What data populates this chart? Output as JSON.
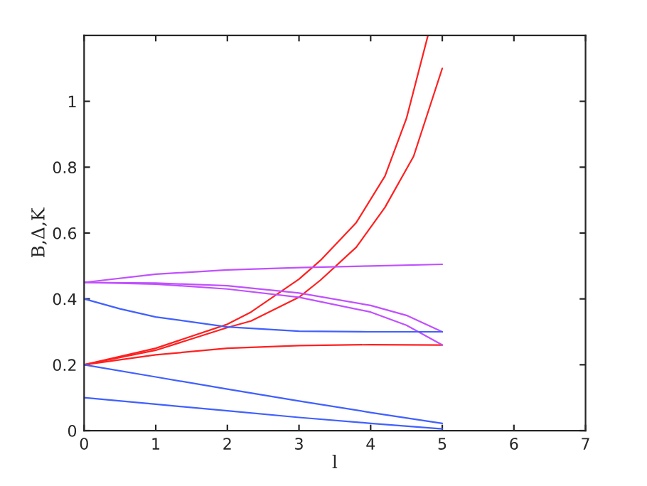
{
  "chart_data": {
    "type": "line",
    "xlabel": "l",
    "ylabel": "B,Δ,K",
    "xlim": [
      0,
      7
    ],
    "xticks": [
      0,
      1,
      2,
      3,
      4,
      5,
      6,
      7
    ],
    "ylim": [
      0,
      1.2
    ],
    "yticks": [
      0,
      0.2,
      0.4,
      0.6,
      0.8,
      1
    ],
    "grid": false,
    "legend": false,
    "series": [
      {
        "color": "#ff2020",
        "x": [
          0,
          1,
          2,
          2.33,
          3,
          3.3,
          3.8,
          4.2,
          4.5,
          4.8
        ],
        "values": [
          0.2,
          0.25,
          0.323,
          0.36,
          0.46,
          0.517,
          0.632,
          0.773,
          0.948,
          1.2
        ]
      },
      {
        "color": "#ff2020",
        "x": [
          0,
          1,
          2,
          2.33,
          3,
          3.3,
          3.8,
          4.2,
          4.6,
          5
        ],
        "values": [
          0.2,
          0.244,
          0.313,
          0.333,
          0.405,
          0.457,
          0.557,
          0.678,
          0.833,
          1.1
        ]
      },
      {
        "color": "#ff2020",
        "x": [
          0,
          1,
          2,
          3,
          4,
          5
        ],
        "values": [
          0.2,
          0.23,
          0.25,
          0.258,
          0.261,
          0.26
        ]
      },
      {
        "color": "#c050ff",
        "x": [
          0,
          1,
          2,
          3,
          4,
          5
        ],
        "values": [
          0.45,
          0.475,
          0.488,
          0.495,
          0.5,
          0.505
        ]
      },
      {
        "color": "#c050ff",
        "x": [
          0,
          1,
          2,
          3,
          4,
          4.5,
          5
        ],
        "values": [
          0.45,
          0.448,
          0.44,
          0.418,
          0.38,
          0.35,
          0.3
        ]
      },
      {
        "color": "#c050ff",
        "x": [
          0,
          1,
          2,
          3,
          4,
          4.5,
          5
        ],
        "values": [
          0.45,
          0.445,
          0.43,
          0.405,
          0.36,
          0.32,
          0.26
        ]
      },
      {
        "color": "#4060ff",
        "x": [
          0,
          0.5,
          1,
          2,
          3,
          4,
          5
        ],
        "values": [
          0.4,
          0.37,
          0.345,
          0.315,
          0.302,
          0.3,
          0.3
        ]
      },
      {
        "color": "#4060ff",
        "x": [
          0,
          1,
          2,
          3,
          4,
          5
        ],
        "values": [
          0.2,
          0.163,
          0.126,
          0.09,
          0.055,
          0.022
        ]
      },
      {
        "color": "#4060ff",
        "x": [
          0,
          1,
          2,
          3,
          4,
          5
        ],
        "values": [
          0.1,
          0.08,
          0.06,
          0.04,
          0.022,
          0.005
        ]
      }
    ]
  }
}
